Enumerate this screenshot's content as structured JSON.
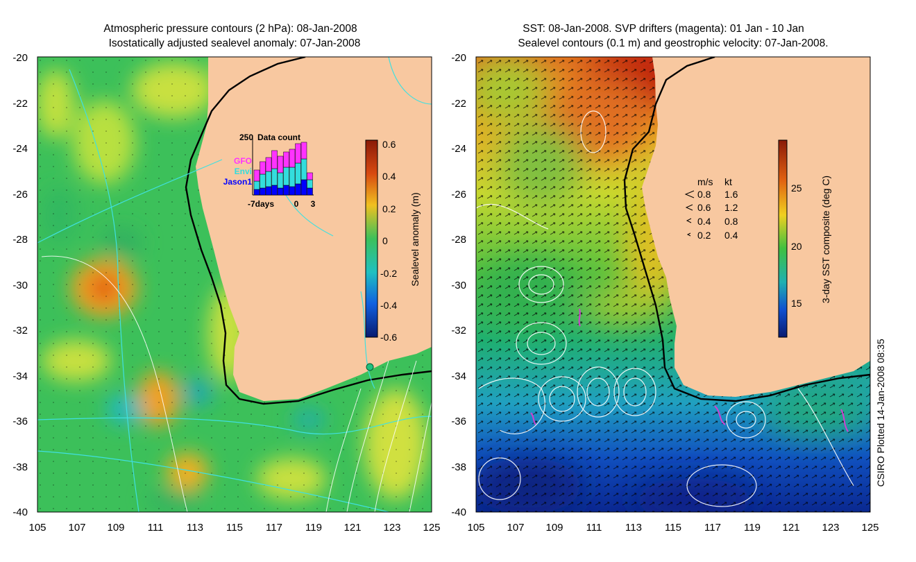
{
  "left_panel": {
    "title_line1": "Atmospheric pressure contours (2 hPa): 08-Jan-2008",
    "title_line2": "Isostatically adjusted sealevel anomaly: 07-Jan-2008",
    "colorbar": {
      "label": "Sealevel anomaly (m)",
      "ticks": [
        "0.6",
        "0.4",
        "0.2",
        "0",
        "-0.2",
        "-0.4",
        "-0.6"
      ]
    },
    "inset": {
      "title": "Data count",
      "ymax_label": "250",
      "legend": [
        {
          "label": "GFO",
          "color": "#ff33ff"
        },
        {
          "label": "Envi",
          "color": "#33dddd"
        },
        {
          "label": "Jason1",
          "color": "#0000ff"
        }
      ],
      "x_labels": [
        "-7days",
        "0",
        "3"
      ]
    }
  },
  "right_panel": {
    "title_line1": "SST: 08-Jan-2008. SVP drifters (magenta): 01 Jan - 10 Jan",
    "title_line2": "Sealevel contours (0.1 m) and geostrophic velocity: 07-Jan-2008.",
    "colorbar": {
      "label": "3-day SST composite (deg C)",
      "ticks": [
        "25",
        "20",
        "15"
      ]
    },
    "speed_legend": {
      "header_ms": "m/s",
      "header_kt": "kt",
      "rows": [
        {
          "ms": "0.8",
          "kt": "1.6"
        },
        {
          "ms": "0.6",
          "kt": "1.2"
        },
        {
          "ms": "0.4",
          "kt": "0.8"
        },
        {
          "ms": "0.2",
          "kt": "0.4"
        }
      ]
    }
  },
  "axes": {
    "y_ticks": [
      "-20",
      "-22",
      "-24",
      "-26",
      "-28",
      "-30",
      "-32",
      "-34",
      "-36",
      "-38",
      "-40"
    ],
    "x_ticks": [
      "105",
      "107",
      "109",
      "111",
      "113",
      "115",
      "117",
      "119",
      "121",
      "123",
      "125"
    ]
  },
  "credit": "CSIRO Plotted 14-Jan-2008 08:35",
  "colors": {
    "land": "#f8c8a0",
    "ocean_green": "#3cc05a",
    "anomaly_yellow": "#d8e84a",
    "anomaly_orange": "#f0a020",
    "sst_red": "#c02010",
    "sst_blue": "#1030b0",
    "drifter": "#d040d0",
    "pressure_contour": "#40e0e0"
  }
}
